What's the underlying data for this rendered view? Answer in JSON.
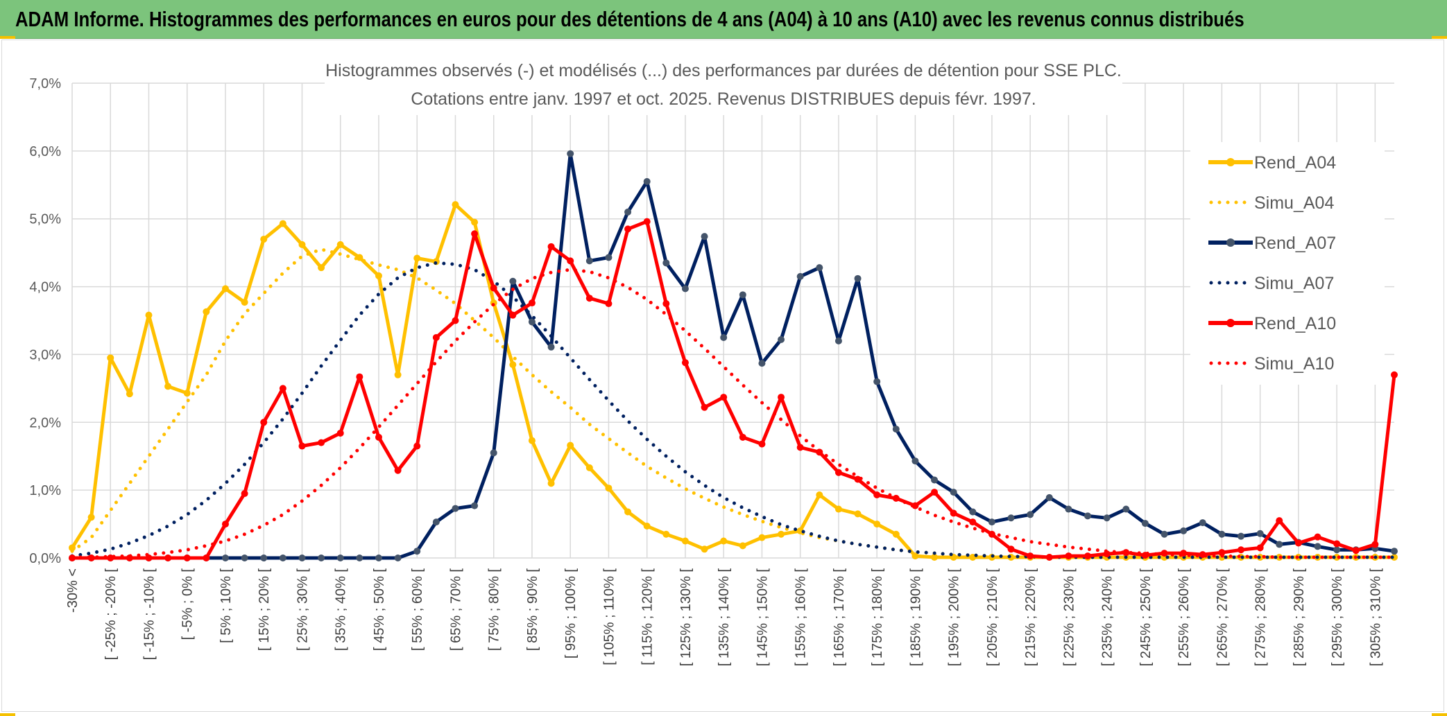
{
  "banner": {
    "title": "ADAM Informe. Histogrammes des performances en euros pour des détentions de 4 ans (A04) à 10 ans (A10) avec les revenus connus distribués"
  },
  "chart_data": {
    "type": "line",
    "title_line1": "Histogrammes observés (-) et modélisés (...) des performances par durées de détention pour SSE PLC.",
    "title_line2": "Cotations entre janv. 1997 et oct. 2025. Revenus DISTRIBUES depuis févr. 1997.",
    "ylim": [
      0,
      0.07
    ],
    "yticks": [
      "0,0%",
      "1,0%",
      "2,0%",
      "3,0%",
      "4,0%",
      "5,0%",
      "6,0%",
      "7,0%"
    ],
    "xtick_labels": [
      "-30% <",
      "[ -25% ; -20% [",
      "[ -15% ; -10% [",
      "[ -5% ; 0% [",
      "[ 5% ; 10% [",
      "[ 15% ; 20% [",
      "[ 25% ; 30% [",
      "[ 35% ; 40% [",
      "[ 45% ; 50% [",
      "[ 55% ; 60% [",
      "[ 65% ; 70% [",
      "[ 75% ; 80% [",
      "[ 85% ; 90% [",
      "[ 95% ; 100% [",
      "[ 105% ; 110% [",
      "[ 115% ; 120% [",
      "[ 125% ; 130% [",
      "[ 135% ; 140% [",
      "[ 145% ; 150% [",
      "[ 155% ; 160% [",
      "[ 165% ; 170% [",
      "[ 175% ; 180% [",
      "[ 185% ; 190% [",
      "[ 195% ; 200% [",
      "[ 205% ; 210% [",
      "[ 215% ; 220% [",
      "[ 225% ; 230% [",
      "[ 235% ; 240% [",
      "[ 245% ; 250% [",
      "[ 255% ; 260% [",
      "[ 265% ; 270% [",
      "[ 275% ; 280% [",
      "[ 285% ; 290% [",
      "[ 295% ; 300% [",
      "[ 305% ; 310% ["
    ],
    "x_count": 70,
    "legend_position": "right",
    "series": [
      {
        "name": "Rend_A04",
        "style": "solid-markers",
        "color": "#FFC000",
        "values": [
          0.0015,
          0.006,
          0.0295,
          0.0242,
          0.0358,
          0.0253,
          0.0243,
          0.0363,
          0.0397,
          0.0377,
          0.047,
          0.0493,
          0.0462,
          0.0428,
          0.0462,
          0.0443,
          0.0416,
          0.027,
          0.0442,
          0.0437,
          0.0521,
          0.0495,
          0.0376,
          0.0285,
          0.0173,
          0.011,
          0.0166,
          0.0133,
          0.0103,
          0.0068,
          0.0047,
          0.0035,
          0.0025,
          0.0013,
          0.0025,
          0.0018,
          0.003,
          0.0035,
          0.004,
          0.0093,
          0.0072,
          0.0065,
          0.005,
          0.0035,
          0.0003,
          0.0001,
          0.0001,
          0.0001,
          0.0001,
          0.0001,
          0.0001,
          0.0001,
          0.0001,
          0.0001,
          0.0001,
          0.0001,
          0.0001,
          0.0001,
          0.0001,
          0.0001,
          0.0001,
          0.0001,
          0.0001,
          0.0001,
          0.0001,
          0.0001,
          0.0001,
          0.0001,
          0.0001,
          0.0001
        ]
      },
      {
        "name": "Simu_A04",
        "style": "dotted",
        "color": "#FFC000",
        "values": [
          0.001,
          0.003,
          0.007,
          0.011,
          0.015,
          0.019,
          0.023,
          0.027,
          0.032,
          0.036,
          0.039,
          0.042,
          0.0445,
          0.0455,
          0.0448,
          0.044,
          0.0432,
          0.0425,
          0.0413,
          0.0395,
          0.0375,
          0.035,
          0.0325,
          0.0297,
          0.027,
          0.0245,
          0.0222,
          0.0197,
          0.0176,
          0.0155,
          0.0135,
          0.0118,
          0.0102,
          0.0088,
          0.0075,
          0.0064,
          0.0054,
          0.0045,
          0.0037,
          0.003,
          0.0025,
          0.002,
          0.0016,
          0.0012,
          0.0009,
          0.0007,
          0.0005,
          0.0004,
          0.0003,
          0.0002,
          0.0002,
          0.0001,
          0.0001,
          0.0001,
          0.0001,
          0.0001,
          0.0001,
          0.0001,
          0.0001,
          0.0001,
          0.0001,
          0.0001,
          0.0001,
          0.0001,
          0.0001,
          0.0001,
          0.0001,
          0.0001,
          0.0001,
          0.0001
        ]
      },
      {
        "name": "Rend_A07",
        "style": "solid-markers",
        "color": "#002060",
        "values": [
          0.0,
          0.0,
          0.0,
          0.0,
          0.0,
          0.0,
          0.0,
          0.0,
          0.0,
          0.0,
          0.0,
          0.0,
          0.0,
          0.0,
          0.0,
          0.0,
          0.0,
          0.0,
          0.001,
          0.0053,
          0.0073,
          0.0077,
          0.0155,
          0.0408,
          0.0348,
          0.0311,
          0.0596,
          0.0438,
          0.0443,
          0.051,
          0.0555,
          0.0435,
          0.0397,
          0.0474,
          0.0325,
          0.0388,
          0.0287,
          0.0322,
          0.0415,
          0.0428,
          0.032,
          0.0412,
          0.026,
          0.019,
          0.0143,
          0.0115,
          0.0097,
          0.0068,
          0.0053,
          0.0059,
          0.0064,
          0.0089,
          0.0072,
          0.0062,
          0.0059,
          0.0072,
          0.0051,
          0.0035,
          0.004,
          0.0052,
          0.0035,
          0.0032,
          0.0036,
          0.002,
          0.0023,
          0.0017,
          0.0012,
          0.0012,
          0.0014,
          0.001
        ]
      },
      {
        "name": "Simu_A07",
        "style": "dotted",
        "color": "#002060",
        "values": [
          0.0003,
          0.0007,
          0.0013,
          0.0022,
          0.0033,
          0.0047,
          0.0064,
          0.0085,
          0.011,
          0.0138,
          0.017,
          0.0205,
          0.0243,
          0.0283,
          0.0321,
          0.0358,
          0.0389,
          0.0413,
          0.0428,
          0.0435,
          0.0433,
          0.0425,
          0.0408,
          0.0385,
          0.0357,
          0.0327,
          0.0295,
          0.0263,
          0.0232,
          0.0202,
          0.0175,
          0.015,
          0.0127,
          0.0107,
          0.0089,
          0.0074,
          0.0061,
          0.0049,
          0.004,
          0.0032,
          0.0025,
          0.002,
          0.0016,
          0.0012,
          0.0009,
          0.0007,
          0.0005,
          0.0004,
          0.0003,
          0.0002,
          0.0002,
          0.0001,
          0.0001,
          0.0001,
          0.0001,
          0.0001,
          0.0001,
          0.0001,
          0.0001,
          0.0001,
          0.0001,
          0.0001,
          0.0001,
          0.0001,
          0.0001,
          0.0001,
          0.0001,
          0.0001,
          0.0001,
          0.0001
        ]
      },
      {
        "name": "Rend_A10",
        "style": "solid-markers",
        "color": "#FF0000",
        "values": [
          0.0,
          0.0,
          0.0,
          0.0,
          0.0,
          0.0,
          0.0,
          0.0,
          0.005,
          0.0095,
          0.02,
          0.025,
          0.0165,
          0.017,
          0.0184,
          0.0267,
          0.0178,
          0.0129,
          0.0165,
          0.0325,
          0.035,
          0.0478,
          0.0398,
          0.0358,
          0.0376,
          0.0459,
          0.0438,
          0.0383,
          0.0375,
          0.0485,
          0.0496,
          0.0375,
          0.0288,
          0.0222,
          0.0237,
          0.0178,
          0.0168,
          0.0237,
          0.0163,
          0.0156,
          0.0126,
          0.0116,
          0.0093,
          0.0088,
          0.0077,
          0.0097,
          0.0066,
          0.0053,
          0.0035,
          0.0013,
          0.0003,
          0.0001,
          0.0003,
          0.0003,
          0.0006,
          0.0008,
          0.0004,
          0.0007,
          0.0007,
          0.0005,
          0.0008,
          0.0012,
          0.0015,
          0.0055,
          0.0022,
          0.0031,
          0.0021,
          0.0011,
          0.002,
          0.027
        ]
      },
      {
        "name": "Simu_A10",
        "style": "dotted",
        "color": "#FF0000",
        "values": [
          0.0001,
          0.0001,
          0.0002,
          0.0003,
          0.0005,
          0.0008,
          0.0012,
          0.0018,
          0.0025,
          0.0035,
          0.0048,
          0.0064,
          0.0084,
          0.0107,
          0.0133,
          0.0162,
          0.0193,
          0.0225,
          0.0257,
          0.0289,
          0.032,
          0.0348,
          0.0374,
          0.0396,
          0.0412,
          0.0421,
          0.0425,
          0.0422,
          0.0413,
          0.0399,
          0.0381,
          0.0359,
          0.0335,
          0.0309,
          0.0282,
          0.0255,
          0.0229,
          0.0204,
          0.018,
          0.0158,
          0.0138,
          0.012,
          0.0103,
          0.0088,
          0.0075,
          0.0063,
          0.0053,
          0.0044,
          0.0036,
          0.003,
          0.0024,
          0.002,
          0.0016,
          0.0013,
          0.001,
          0.0008,
          0.0007,
          0.0005,
          0.0004,
          0.0003,
          0.0003,
          0.0002,
          0.0002,
          0.0001,
          0.0001,
          0.0001,
          0.0001,
          0.0001,
          0.0001,
          0.0001
        ]
      }
    ]
  }
}
